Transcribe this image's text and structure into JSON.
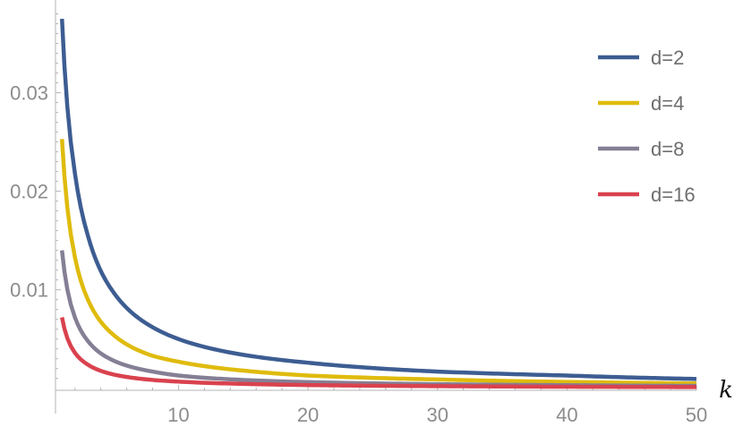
{
  "chart_data": {
    "type": "line",
    "title": "",
    "xlabel": "k",
    "ylabel": "",
    "xlim": [
      0.5,
      50
    ],
    "ylim": [
      -0.0002,
      0.0385
    ],
    "x_ticks": [
      {
        "value": 10,
        "label": "10"
      },
      {
        "value": 20,
        "label": "20"
      },
      {
        "value": 30,
        "label": "30"
      },
      {
        "value": 40,
        "label": "40"
      },
      {
        "value": 50,
        "label": "50"
      }
    ],
    "y_ticks": [
      {
        "value": 0.01,
        "label": "0.01"
      },
      {
        "value": 0.02,
        "label": "0.02"
      },
      {
        "value": 0.03,
        "label": "0.03"
      }
    ],
    "grid": false,
    "legend_position": "top-right",
    "series": [
      {
        "name": "d=2",
        "color": "#3d5d92",
        "x": [
          1,
          2,
          3,
          5,
          8,
          10,
          15,
          20,
          30,
          40,
          50
        ],
        "y": [
          0.0375,
          0.0218,
          0.0155,
          0.0097,
          0.0062,
          0.005,
          0.0034,
          0.0026,
          0.0017,
          0.0013,
          0.00095
        ]
      },
      {
        "name": "d=4",
        "color": "#dfbb0d",
        "x": [
          1,
          2,
          3,
          5,
          8,
          10,
          15,
          20,
          30,
          40,
          50
        ],
        "y": [
          0.0253,
          0.0133,
          0.009,
          0.0054,
          0.0033,
          0.0027,
          0.0018,
          0.0013,
          0.0009,
          0.00065,
          0.0005
        ]
      },
      {
        "name": "d=8",
        "color": "#857f95",
        "x": [
          1,
          2,
          3,
          5,
          8,
          10,
          15,
          20,
          30,
          40,
          50
        ],
        "y": [
          0.014,
          0.0072,
          0.0048,
          0.0028,
          0.0017,
          0.0013,
          0.00085,
          0.00063,
          0.00042,
          0.00032,
          0.00025
        ]
      },
      {
        "name": "d=16",
        "color": "#d9424e",
        "x": [
          1,
          2,
          3,
          5,
          8,
          10,
          15,
          20,
          30,
          40,
          50
        ],
        "y": [
          0.0072,
          0.0036,
          0.0024,
          0.0014,
          0.00085,
          0.00068,
          0.00045,
          0.00033,
          0.00022,
          0.00016,
          0.00013
        ]
      }
    ]
  }
}
